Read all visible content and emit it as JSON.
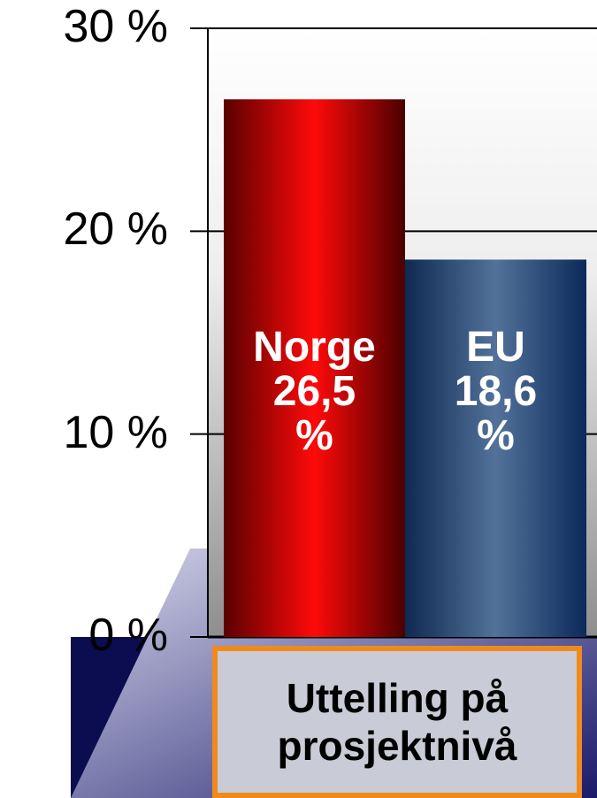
{
  "chart_data": {
    "type": "bar",
    "categories": [
      "Norge",
      "EU"
    ],
    "values": [
      26.5,
      18.6
    ],
    "value_labels": [
      "26,5 %",
      "18,6 %"
    ],
    "colors": [
      "#e00000",
      "#2d5077"
    ],
    "ylim": [
      0,
      30
    ],
    "yticks": [
      {
        "value": 0,
        "label": "0 %"
      },
      {
        "value": 10,
        "label": "10 %"
      },
      {
        "value": 20,
        "label": "20 %"
      },
      {
        "value": 30,
        "label": "30 %"
      }
    ],
    "grid": true,
    "annotation": "Uttelling på prosjektnivå"
  }
}
